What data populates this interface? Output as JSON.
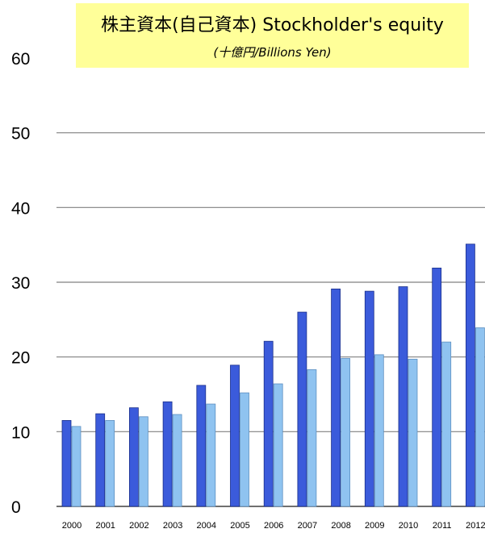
{
  "chart_data": {
    "type": "bar",
    "title": "株主資本(自己資本) Stockholder's equity",
    "subtitle": "(十億円/Billions Yen)",
    "categories": [
      "2000",
      "2001",
      "2002",
      "2003",
      "2004",
      "2005",
      "2006",
      "2007",
      "2008",
      "2009",
      "2010",
      "2011",
      "2012"
    ],
    "series": [
      {
        "values": [
          11.5,
          12.4,
          13.2,
          14.0,
          16.2,
          18.9,
          22.1,
          26.0,
          29.1,
          28.8,
          29.4,
          31.9,
          35.1
        ],
        "color": "#3b5bdb"
      },
      {
        "values": [
          10.7,
          11.5,
          12.0,
          12.3,
          13.7,
          15.2,
          16.4,
          18.3,
          19.8,
          20.3,
          19.7,
          22.0,
          23.9
        ],
        "color": "#8fc3f0"
      }
    ],
    "ylim": [
      0,
      60
    ],
    "yticks": [
      0,
      10,
      20,
      30,
      40,
      50,
      60
    ],
    "grid": true
  }
}
